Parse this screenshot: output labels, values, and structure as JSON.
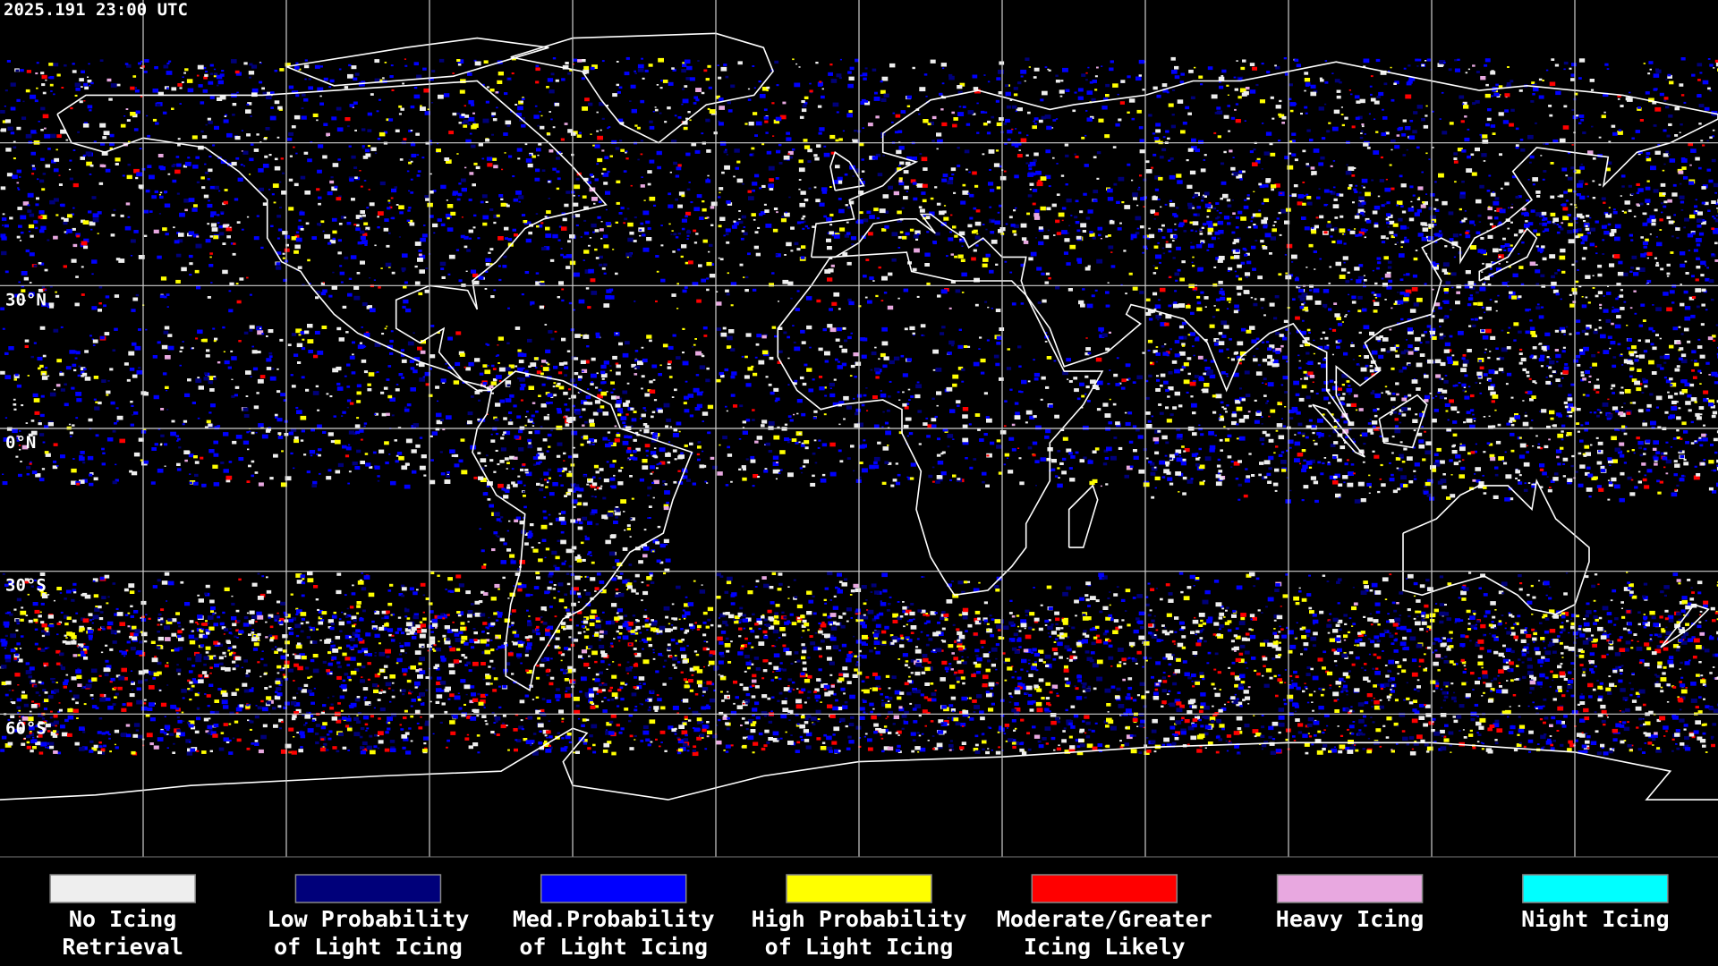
{
  "header": {
    "timestamp": "2025.191 23:00 UTC"
  },
  "map": {
    "lat_labels": [
      "30°N",
      "0°N",
      "30°S",
      "60°S"
    ]
  },
  "legend": {
    "items": [
      {
        "label": [
          "No Icing",
          "Retrieval"
        ],
        "color": "#eeeeee"
      },
      {
        "label": [
          "Low Probability",
          "of Light Icing"
        ],
        "color": "#00007a"
      },
      {
        "label": [
          "Med.Probability",
          "of Light Icing"
        ],
        "color": "#0000ff"
      },
      {
        "label": [
          "High Probability",
          "of Light Icing"
        ],
        "color": "#ffff00"
      },
      {
        "label": [
          "Moderate/Greater",
          "Icing Likely"
        ],
        "color": "#ff0000"
      },
      {
        "label": [
          "Heavy Icing"
        ],
        "color": "#e8a8e0"
      },
      {
        "label": [
          "Night Icing"
        ],
        "color": "#00ffff"
      }
    ]
  }
}
